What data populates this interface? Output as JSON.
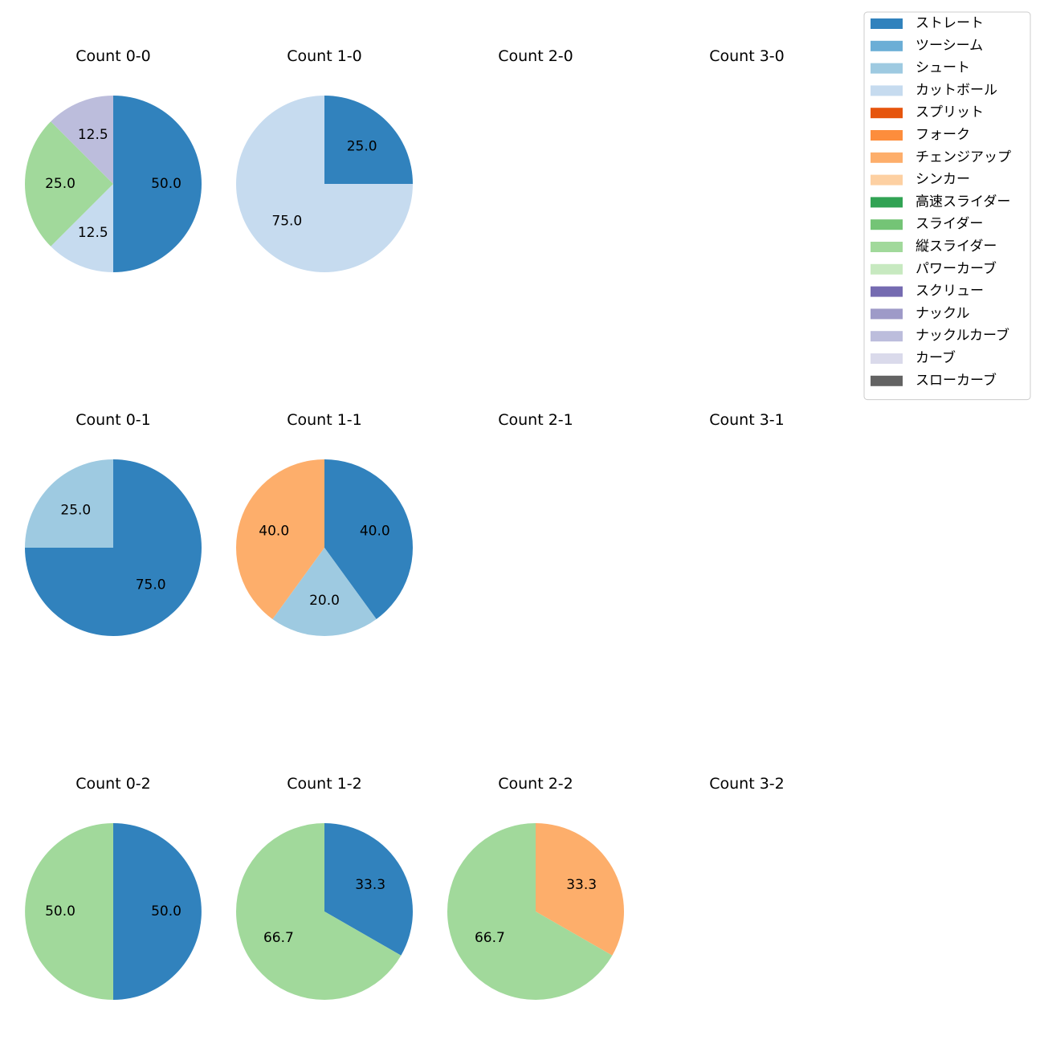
{
  "chart_data": {
    "type": "pie",
    "legend": {
      "placement": "top-right",
      "entries": [
        {
          "name": "ストレート",
          "color": "#3182bd"
        },
        {
          "name": "ツーシーム",
          "color": "#6baed6"
        },
        {
          "name": "シュート",
          "color": "#9ecae1"
        },
        {
          "name": "カットボール",
          "color": "#c6dbef"
        },
        {
          "name": "スプリット",
          "color": "#e6550d"
        },
        {
          "name": "フォーク",
          "color": "#fd8d3c"
        },
        {
          "name": "チェンジアップ",
          "color": "#fdae6b"
        },
        {
          "name": "シンカー",
          "color": "#fdd0a2"
        },
        {
          "name": "高速スライダー",
          "color": "#31a354"
        },
        {
          "name": "スライダー",
          "color": "#74c476"
        },
        {
          "name": "縦スライダー",
          "color": "#a1d99b"
        },
        {
          "name": "パワーカーブ",
          "color": "#c7e9c0"
        },
        {
          "name": "スクリュー",
          "color": "#756bb1"
        },
        {
          "name": "ナックル",
          "color": "#9e9ac8"
        },
        {
          "name": "ナックルカーブ",
          "color": "#bcbddc"
        },
        {
          "name": "カーブ",
          "color": "#dadaeb"
        },
        {
          "name": "スローカーブ",
          "color": "#636363"
        }
      ]
    },
    "panels": [
      {
        "title": "Count 0-0",
        "slices": [
          {
            "pitch": "ストレート",
            "value": 50.0,
            "label": "50.0"
          },
          {
            "pitch": "カットボール",
            "value": 12.5,
            "label": "12.5"
          },
          {
            "pitch": "縦スライダー",
            "value": 25.0,
            "label": "25.0"
          },
          {
            "pitch": "ナックルカーブ",
            "value": 12.5,
            "label": "12.5"
          }
        ]
      },
      {
        "title": "Count 1-0",
        "slices": [
          {
            "pitch": "ストレート",
            "value": 25.0,
            "label": "25.0"
          },
          {
            "pitch": "カットボール",
            "value": 75.0,
            "label": "75.0"
          }
        ]
      },
      {
        "title": "Count 2-0",
        "slices": []
      },
      {
        "title": "Count 3-0",
        "slices": []
      },
      {
        "title": "Count 0-1",
        "slices": [
          {
            "pitch": "ストレート",
            "value": 75.0,
            "label": "75.0"
          },
          {
            "pitch": "シュート",
            "value": 25.0,
            "label": "25.0"
          }
        ]
      },
      {
        "title": "Count 1-1",
        "slices": [
          {
            "pitch": "ストレート",
            "value": 40.0,
            "label": "40.0"
          },
          {
            "pitch": "シュート",
            "value": 20.0,
            "label": "20.0"
          },
          {
            "pitch": "チェンジアップ",
            "value": 40.0,
            "label": "40.0"
          }
        ]
      },
      {
        "title": "Count 2-1",
        "slices": []
      },
      {
        "title": "Count 3-1",
        "slices": []
      },
      {
        "title": "Count 0-2",
        "slices": [
          {
            "pitch": "ストレート",
            "value": 50.0,
            "label": "50.0"
          },
          {
            "pitch": "縦スライダー",
            "value": 50.0,
            "label": "50.0"
          }
        ]
      },
      {
        "title": "Count 1-2",
        "slices": [
          {
            "pitch": "ストレート",
            "value": 33.3,
            "label": "33.3"
          },
          {
            "pitch": "縦スライダー",
            "value": 66.7,
            "label": "66.7"
          }
        ]
      },
      {
        "title": "Count 2-2",
        "slices": [
          {
            "pitch": "チェンジアップ",
            "value": 33.3,
            "label": "33.3"
          },
          {
            "pitch": "縦スライダー",
            "value": 66.7,
            "label": "66.7"
          }
        ]
      },
      {
        "title": "Count 3-2",
        "slices": []
      }
    ]
  }
}
